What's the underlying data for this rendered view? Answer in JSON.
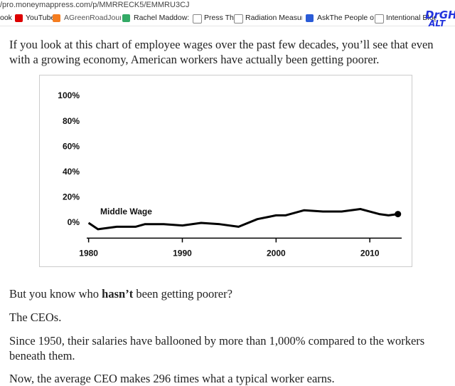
{
  "browser": {
    "url": "/pro.moneymappress.com/p/MMRRECK5/EMMRU3CJ",
    "bookmarks": [
      "ook",
      "YouTube",
      "AGreenRoadJournal -",
      "Rachel Maddow: Wa",
      "Press This",
      "Radiation Measurem",
      "AskThe People on US",
      "Intentional Blog"
    ],
    "logo": [
      "DrGH.",
      "ALT"
    ]
  },
  "article": {
    "intro": "If you look at this chart of employee wages over the past few decades, you’ll see that even with a growing economy, American workers have actually been getting poorer.",
    "question": {
      "before": "But you know who",
      "bold": "hasn’t",
      "after": "been getting poorer?"
    },
    "paragraphs": [
      "The CEOs.",
      "Since 1950, their salaries have ballooned by more than 1,000% compared to the workers beneath them.",
      "Now, the average CEO makes 296 times what a typical worker earns."
    ]
  },
  "chart_data": {
    "type": "line",
    "annotation": "Middle Wage",
    "color": "#000000",
    "x": [
      1980,
      1981,
      1983,
      1985,
      1986,
      1988,
      1990,
      1992,
      1994,
      1996,
      1998,
      2000,
      2001,
      2003,
      2005,
      2006,
      2007,
      2009,
      2011,
      2012,
      2013
    ],
    "values": [
      0,
      -5,
      -3,
      -3,
      -1,
      -1,
      -2,
      0,
      -1,
      -3,
      3,
      6,
      6,
      10,
      9,
      9,
      9,
      11,
      7,
      6,
      7
    ],
    "xlim": [
      1979.8,
      2013.4
    ],
    "xticks": [
      1980,
      1990,
      2000,
      2010
    ],
    "ylim": [
      -12,
      105
    ],
    "yticks": [
      {
        "value": 0,
        "label": "0%"
      },
      {
        "value": 20,
        "label": "20%"
      },
      {
        "value": 40,
        "label": "40%"
      },
      {
        "value": 60,
        "label": "60%"
      },
      {
        "value": 80,
        "label": "80%"
      },
      {
        "value": 100,
        "label": "100%"
      }
    ]
  }
}
